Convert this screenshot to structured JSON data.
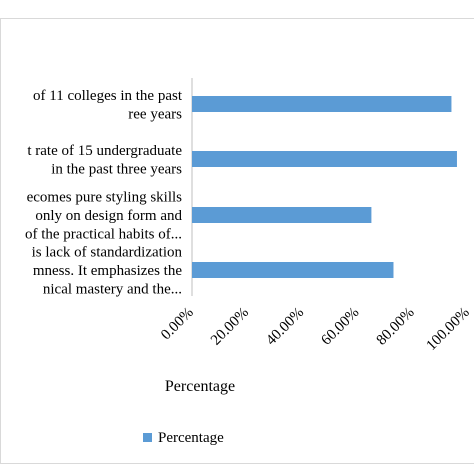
{
  "chart_data": {
    "type": "bar",
    "orientation": "horizontal",
    "categories": [
      [
        "of 11 colleges in the past",
        "ree years"
      ],
      [
        "t rate of 15 undergraduate",
        "in the past three years"
      ],
      [
        "ecomes pure styling skills",
        "only on design form and",
        "of the practical habits of..."
      ],
      [
        "is lack of standardization",
        "mness. It emphasizes the",
        "nical mastery and the..."
      ]
    ],
    "series": [
      {
        "name": "Percentage",
        "values": [
          0.94,
          0.96,
          0.65,
          0.73
        ],
        "color": "#5B9BD5"
      }
    ],
    "xlim": [
      0,
      1.0
    ],
    "tick_labels": [
      "0.00%",
      "20.00%",
      "40.00%",
      "60.00%",
      "80.00%",
      "100.00%"
    ],
    "xlabel": "Percentage",
    "legend": {
      "position": "bottom",
      "label": "Percentage"
    }
  }
}
